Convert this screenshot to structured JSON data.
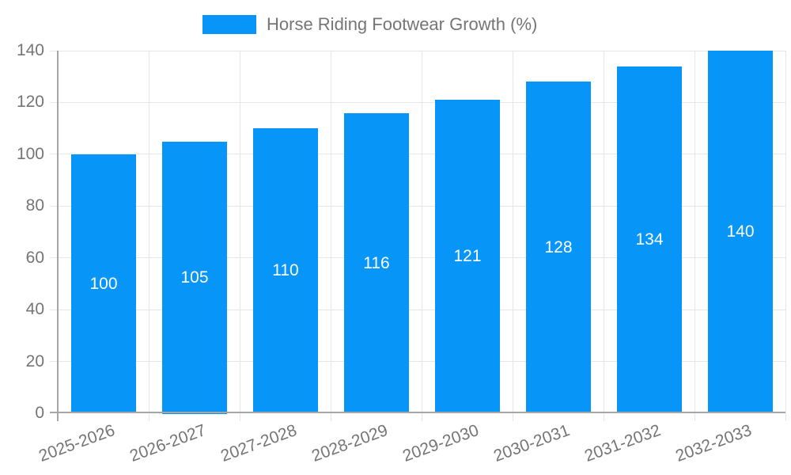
{
  "legend": {
    "label": "Horse Riding Footwear Growth (%)"
  },
  "chart_data": {
    "type": "bar",
    "title": "Horse Riding Footwear Growth (%)",
    "categories": [
      "2025-2026",
      "2026-2027",
      "2027-2028",
      "2028-2029",
      "2029-2030",
      "2030-2031",
      "2031-2032",
      "2032-2033"
    ],
    "values": [
      100,
      105,
      110,
      116,
      121,
      128,
      134,
      140
    ],
    "xlabel": "",
    "ylabel": "",
    "ylim": [
      0,
      140
    ],
    "yticks": [
      0,
      20,
      40,
      60,
      80,
      100,
      120,
      140
    ],
    "grid": true,
    "legend_position": "top",
    "data_labels": "inside-center"
  },
  "colors": {
    "bar": "#0895F8",
    "axis": "#A6A6A6",
    "gridline": "#E6E6E6",
    "text": "#757575",
    "data_label": "#FFFFFF",
    "background": "#FFFFFF"
  }
}
